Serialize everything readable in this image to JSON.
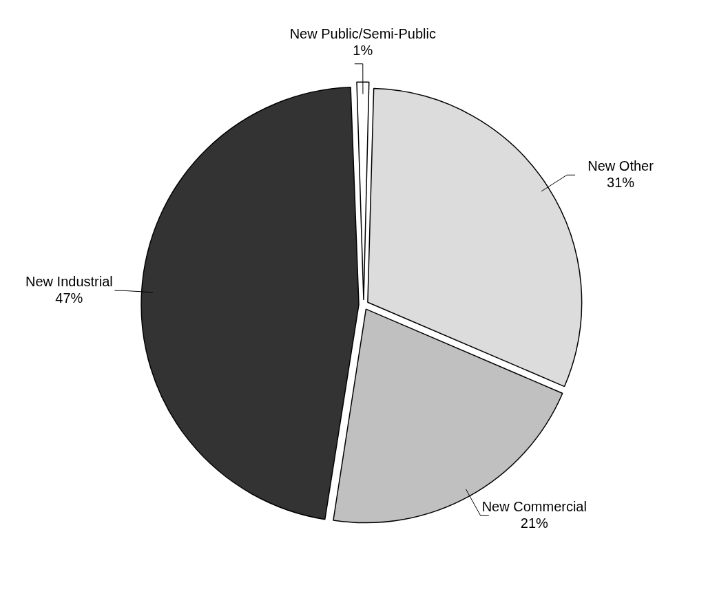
{
  "chart_data": {
    "type": "pie",
    "categories": [
      "New Public/Semi-Public",
      "New Other",
      "New Commercial",
      "New Industrial"
    ],
    "values": [
      1,
      31,
      21,
      47
    ],
    "value_labels": [
      "1%",
      "31%",
      "21%",
      "47%"
    ],
    "colors": [
      "#ffffff",
      "#dcdcdc",
      "#c0c0c0",
      "#333333"
    ],
    "legend": false
  }
}
